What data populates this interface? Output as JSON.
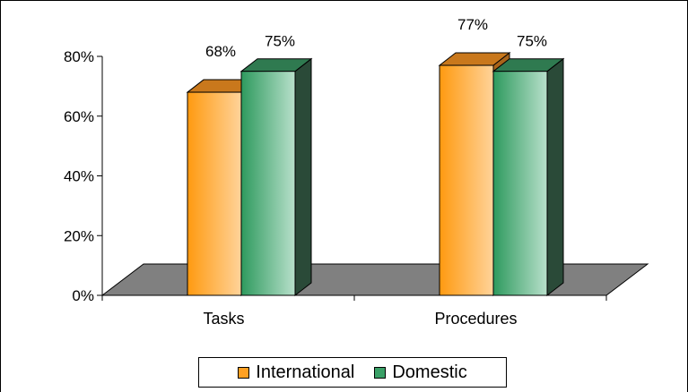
{
  "chart_data": {
    "type": "bar",
    "categories": [
      "Tasks",
      "Procedures"
    ],
    "series": [
      {
        "name": "International",
        "values": [
          68,
          77
        ],
        "labels": [
          "68%",
          "77%"
        ],
        "color": "#FFA022"
      },
      {
        "name": "Domestic",
        "values": [
          75,
          75
        ],
        "labels": [
          "75%",
          "75%"
        ],
        "color": "#3AA067"
      }
    ],
    "yticks": [
      "0%",
      "20%",
      "40%",
      "60%",
      "80%"
    ],
    "ylim": [
      0,
      80
    ],
    "grid": false,
    "legend": "bottom",
    "floor_color": "#808080"
  }
}
